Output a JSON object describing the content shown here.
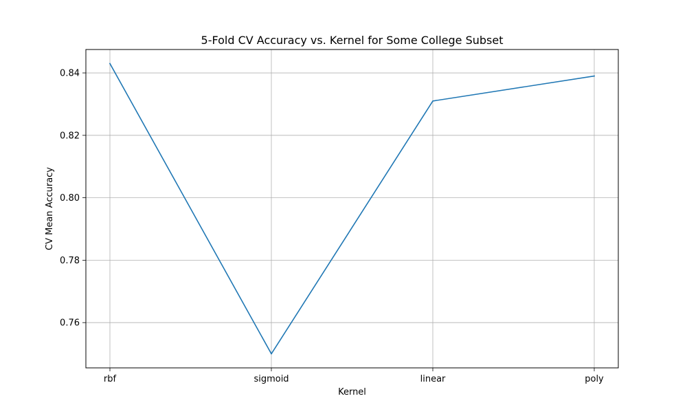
{
  "chart_data": {
    "type": "line",
    "title": "5-Fold CV Accuracy vs. Kernel for Some College Subset",
    "xlabel": "Kernel",
    "ylabel": "CV Mean Accuracy",
    "categories": [
      "rbf",
      "sigmoid",
      "linear",
      "poly"
    ],
    "series": [
      {
        "values": [
          0.843,
          0.75,
          0.831,
          0.839
        ],
        "color": "#1f77b4"
      }
    ],
    "ylim": [
      0.7455,
      0.8475
    ],
    "yticks": [
      0.76,
      0.78,
      0.8,
      0.82,
      0.84
    ],
    "ytick_labels": [
      "0.76",
      "0.78",
      "0.80",
      "0.82",
      "0.84"
    ],
    "grid": true,
    "legend": false
  }
}
